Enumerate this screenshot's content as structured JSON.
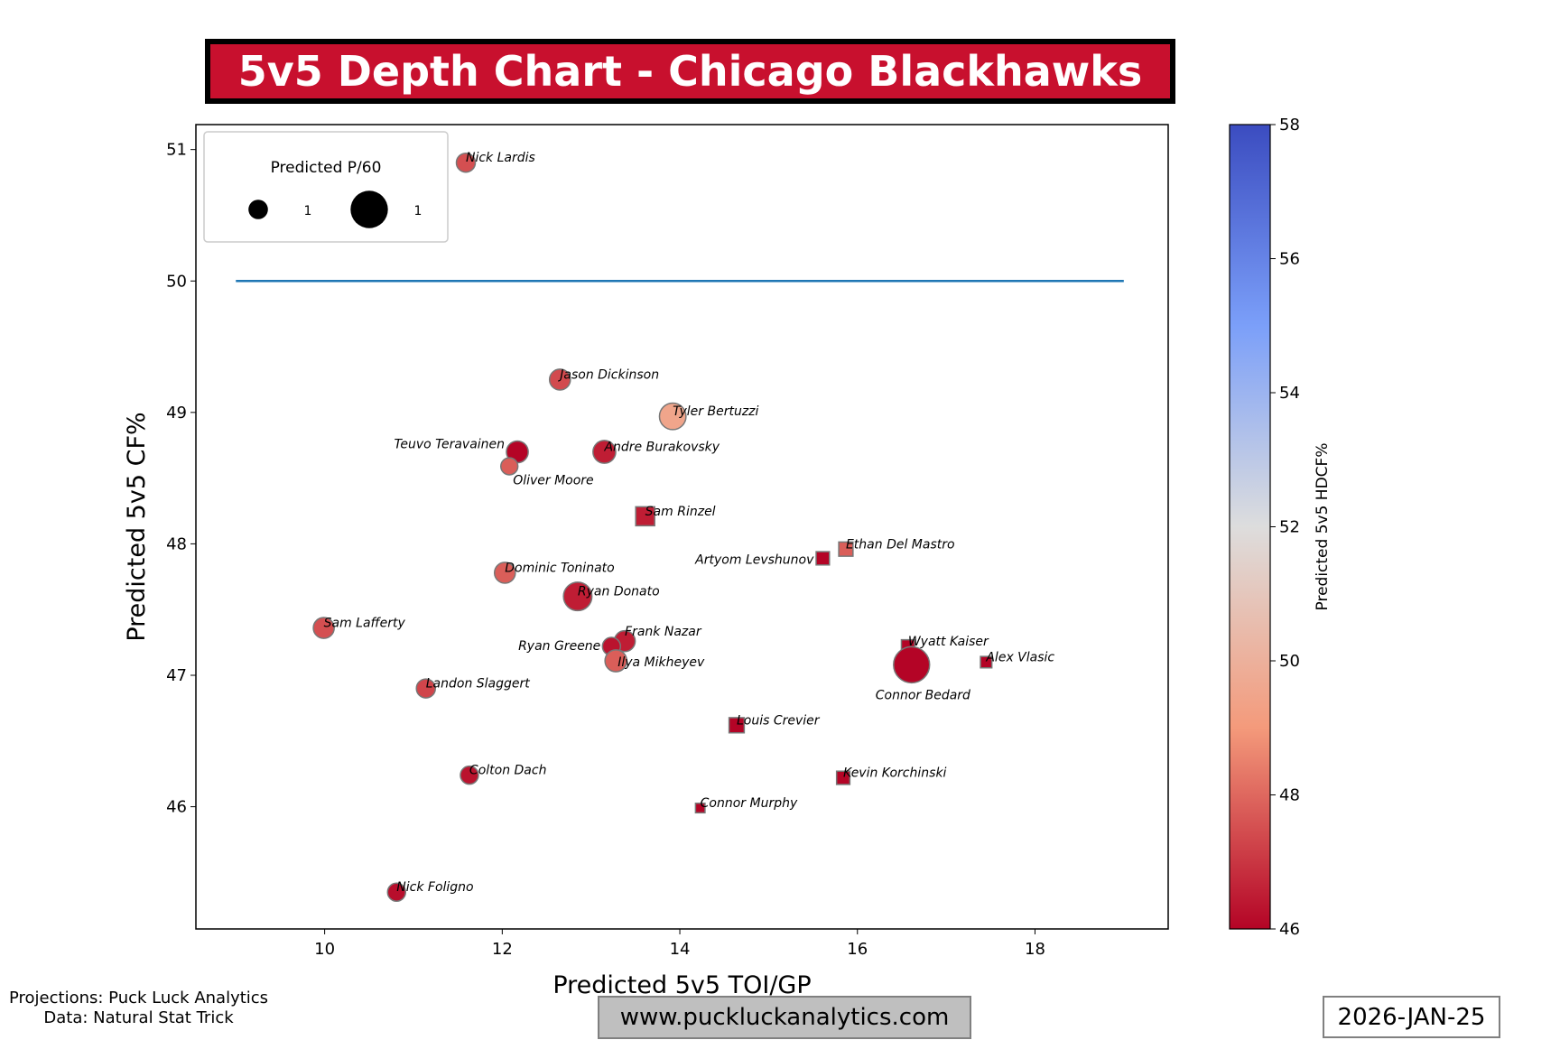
{
  "title": "5v5 Depth Chart - Chicago Blackhawks",
  "footer": {
    "projections": "Projections: Puck Luck Analytics",
    "data_source": "Data: Natural Stat Trick",
    "website": "www.puckluckanalytics.com",
    "date": "2026-JAN-25"
  },
  "chart_data": {
    "type": "scatter",
    "xlabel": "Predicted 5v5 TOI/GP",
    "ylabel": "Predicted 5v5 CF%",
    "xlim": [
      8.55,
      19.5
    ],
    "ylim": [
      45.07,
      51.19
    ],
    "xticks": [
      10,
      12,
      14,
      16,
      18
    ],
    "yticks": [
      46,
      47,
      48,
      49,
      50,
      51
    ],
    "reference_line": {
      "y": 50,
      "x_start": 9,
      "x_end": 19,
      "color": "#1f77b4"
    },
    "legend": {
      "title": "Predicted P/60",
      "placement": "top-left",
      "entries": [
        {
          "label": "1",
          "size": 1.2
        },
        {
          "label": "1",
          "size": 2.3
        }
      ]
    },
    "colorbar": {
      "label": "Predicted 5v5 HDCF%",
      "range": [
        46,
        58
      ],
      "ticks": [
        46,
        48,
        50,
        52,
        54,
        56,
        58
      ],
      "colormap": "coolwarm_r"
    },
    "marker_shapes": {
      "circle": "forward",
      "square": "defense"
    },
    "points": [
      {
        "name": "Nick Lardis",
        "toi": 11.59,
        "cf": 50.9,
        "hdcf": 47.5,
        "size": 1.0,
        "shape": "circle"
      },
      {
        "name": "Jason Dickinson",
        "toi": 12.65,
        "cf": 49.25,
        "hdcf": 47.4,
        "size": 1.1,
        "shape": "circle"
      },
      {
        "name": "Tyler Bertuzzi",
        "toi": 13.92,
        "cf": 48.97,
        "hdcf": 49.5,
        "size": 1.4,
        "shape": "circle"
      },
      {
        "name": "Teuvo Teravainen",
        "toi": 12.17,
        "cf": 48.7,
        "hdcf": 46.0,
        "size": 1.15,
        "shape": "circle"
      },
      {
        "name": "Andre Burakovsky",
        "toi": 13.15,
        "cf": 48.7,
        "hdcf": 46.5,
        "size": 1.2,
        "shape": "circle"
      },
      {
        "name": "Oliver Moore",
        "toi": 12.08,
        "cf": 48.59,
        "hdcf": 47.8,
        "size": 0.9,
        "shape": "circle"
      },
      {
        "name": "Sam Rinzel",
        "toi": 13.61,
        "cf": 48.21,
        "hdcf": 46.5,
        "size": 1.0,
        "shape": "square"
      },
      {
        "name": "Ethan Del Mastro",
        "toi": 15.87,
        "cf": 47.96,
        "hdcf": 47.8,
        "size": 0.75,
        "shape": "square"
      },
      {
        "name": "Artyom Levshunov",
        "toi": 15.61,
        "cf": 47.89,
        "hdcf": 46.0,
        "size": 0.7,
        "shape": "square"
      },
      {
        "name": "Dominic Toninato",
        "toi": 12.03,
        "cf": 47.78,
        "hdcf": 47.8,
        "size": 1.1,
        "shape": "circle"
      },
      {
        "name": "Ryan Donato",
        "toi": 12.85,
        "cf": 47.6,
        "hdcf": 46.5,
        "size": 1.5,
        "shape": "circle"
      },
      {
        "name": "Sam Lafferty",
        "toi": 9.99,
        "cf": 47.36,
        "hdcf": 47.5,
        "size": 1.1,
        "shape": "circle"
      },
      {
        "name": "Frank Nazar",
        "toi": 13.38,
        "cf": 47.26,
        "hdcf": 46.5,
        "size": 1.1,
        "shape": "circle"
      },
      {
        "name": "Ryan Greene",
        "toi": 13.23,
        "cf": 47.22,
        "hdcf": 46.3,
        "size": 0.95,
        "shape": "circle"
      },
      {
        "name": "Ilya Mikheyev",
        "toi": 13.28,
        "cf": 47.11,
        "hdcf": 47.8,
        "size": 1.15,
        "shape": "circle"
      },
      {
        "name": "Wyatt Kaiser",
        "toi": 16.57,
        "cf": 47.22,
        "hdcf": 46.0,
        "size": 0.7,
        "shape": "square"
      },
      {
        "name": "Connor Bedard",
        "toi": 16.61,
        "cf": 47.08,
        "hdcf": 46.0,
        "size": 1.9,
        "shape": "circle"
      },
      {
        "name": "Alex Vlasic",
        "toi": 17.45,
        "cf": 47.1,
        "hdcf": 46.0,
        "size": 0.6,
        "shape": "square"
      },
      {
        "name": "Landon Slaggert",
        "toi": 11.14,
        "cf": 46.9,
        "hdcf": 47.3,
        "size": 1.0,
        "shape": "circle"
      },
      {
        "name": "Louis Crevier",
        "toi": 14.64,
        "cf": 46.62,
        "hdcf": 46.0,
        "size": 0.8,
        "shape": "square"
      },
      {
        "name": "Colton Dach",
        "toi": 11.63,
        "cf": 46.24,
        "hdcf": 46.3,
        "size": 0.95,
        "shape": "circle"
      },
      {
        "name": "Kevin Korchinski",
        "toi": 15.84,
        "cf": 46.22,
        "hdcf": 46.0,
        "size": 0.7,
        "shape": "square"
      },
      {
        "name": "Connor Murphy",
        "toi": 14.23,
        "cf": 45.99,
        "hdcf": 46.0,
        "size": 0.5,
        "shape": "square"
      },
      {
        "name": "Nick Foligno",
        "toi": 10.81,
        "cf": 45.35,
        "hdcf": 46.2,
        "size": 0.95,
        "shape": "circle"
      }
    ]
  }
}
